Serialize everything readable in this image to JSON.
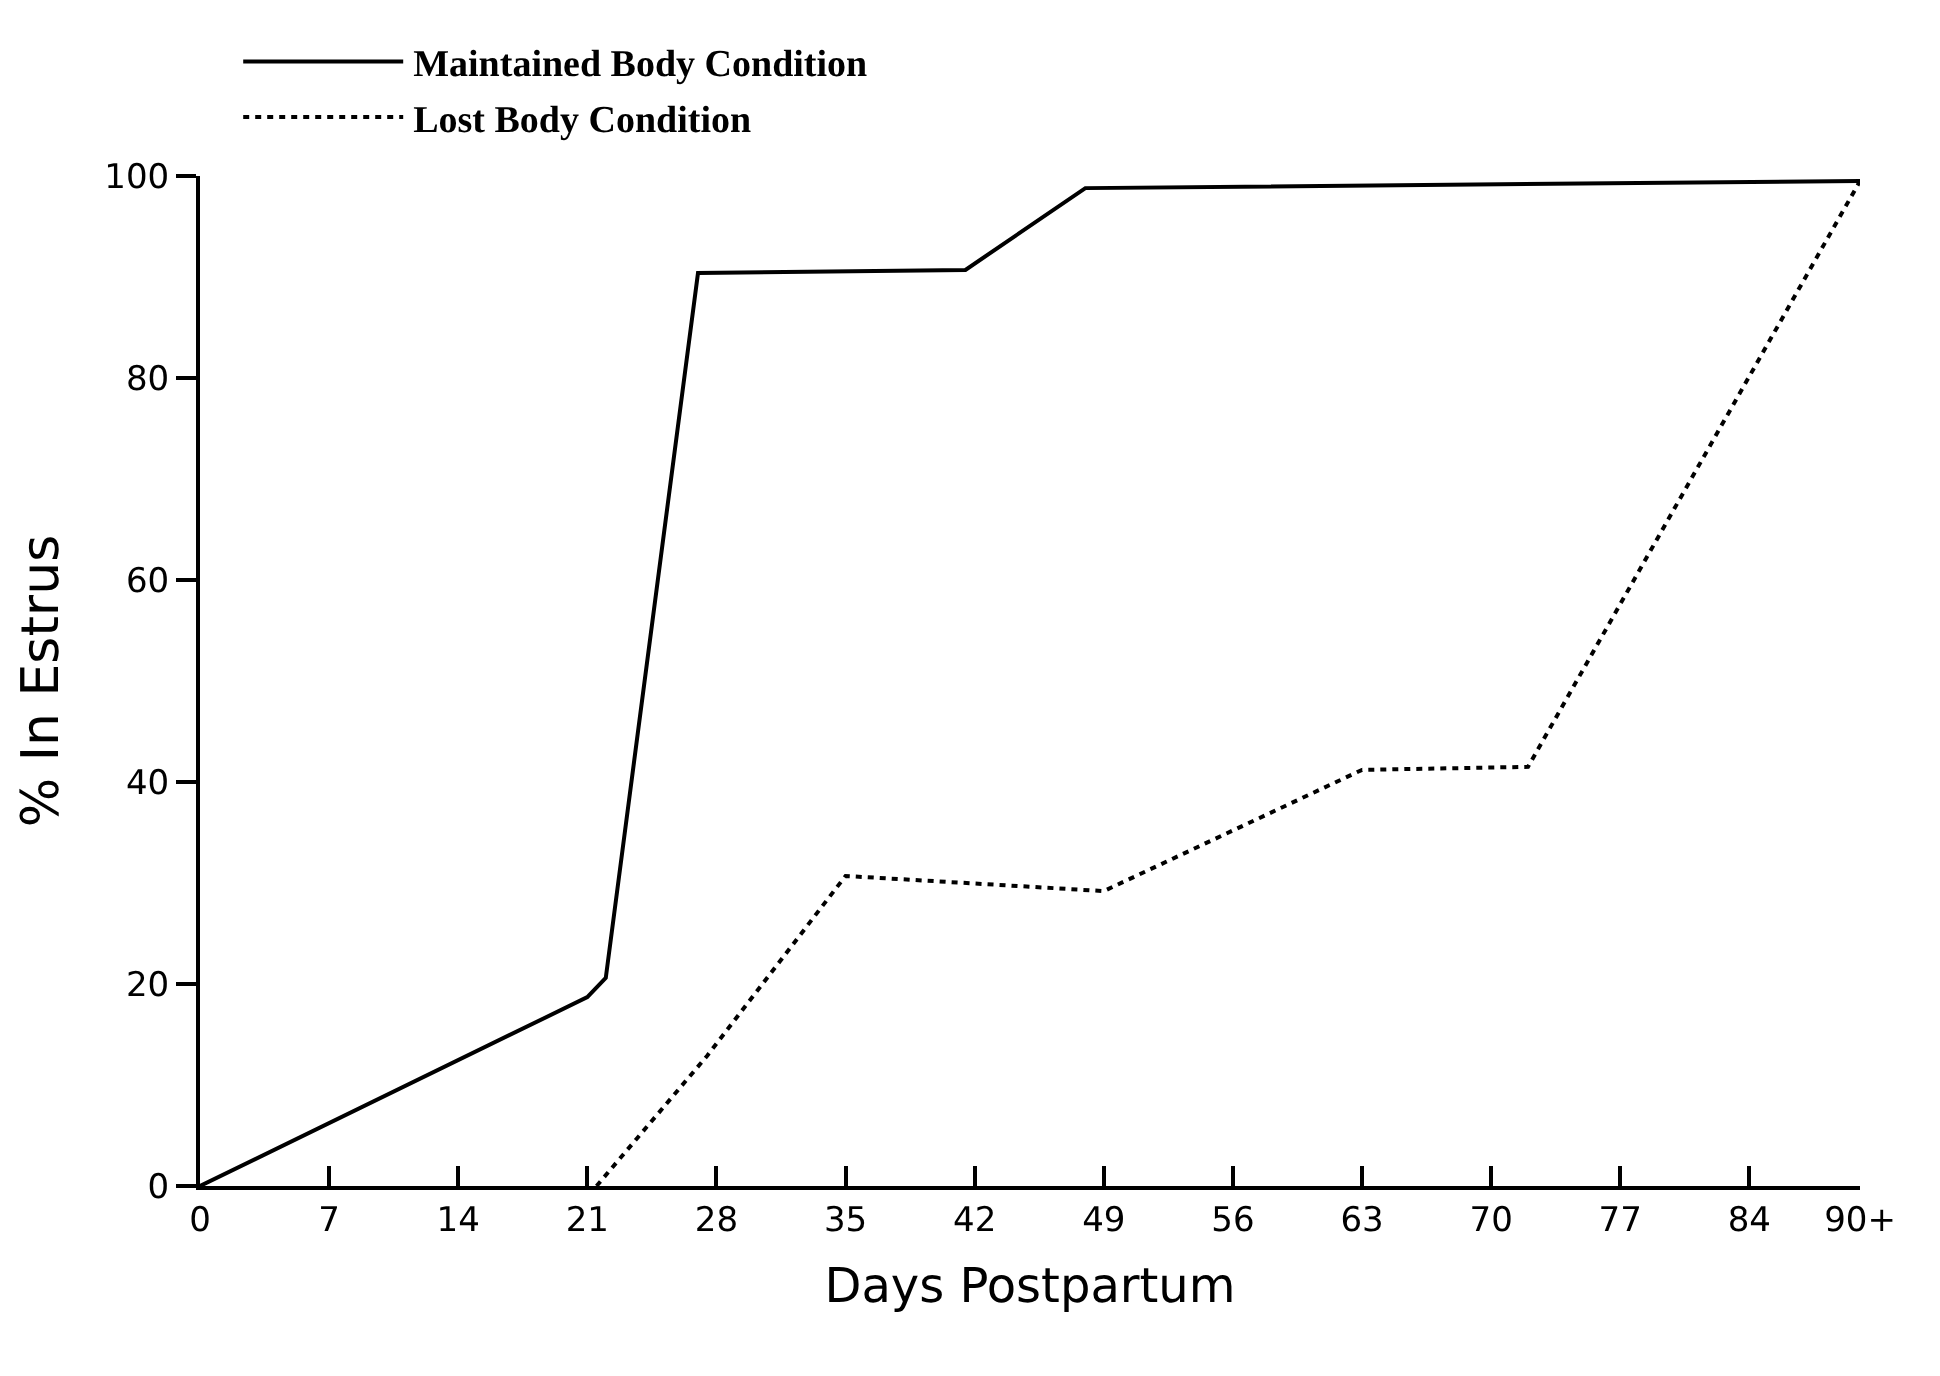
{
  "chart_data": {
    "type": "line",
    "xlabel": "Days Postpartum",
    "ylabel": "% In Estrus",
    "xlim": [
      0,
      90
    ],
    "ylim": [
      0,
      100
    ],
    "xticks": [
      0,
      7,
      14,
      21,
      28,
      35,
      42,
      49,
      56,
      63,
      70,
      77,
      84,
      {
        "value": 90,
        "label": "90+"
      }
    ],
    "yticks": [
      0,
      20,
      40,
      60,
      80,
      100
    ],
    "series": [
      {
        "name": "Maintained Body Condition",
        "color": "#000000",
        "line_style": "solid",
        "x": [
          0,
          21,
          22,
          27,
          41.5,
          48,
          90
        ],
        "values": [
          0,
          18.7,
          20.6,
          90.4,
          90.7,
          98.8,
          99.5
        ]
      },
      {
        "name": "Lost Body Condition",
        "color": "#000000",
        "line_style": "dotted",
        "x": [
          21.5,
          27.5,
          35,
          49,
          63,
          72,
          90
        ],
        "values": [
          0,
          12.9,
          30.7,
          29.2,
          41.2,
          41.5,
          99.5
        ]
      }
    ],
    "legend": "top left",
    "marker": "none"
  }
}
